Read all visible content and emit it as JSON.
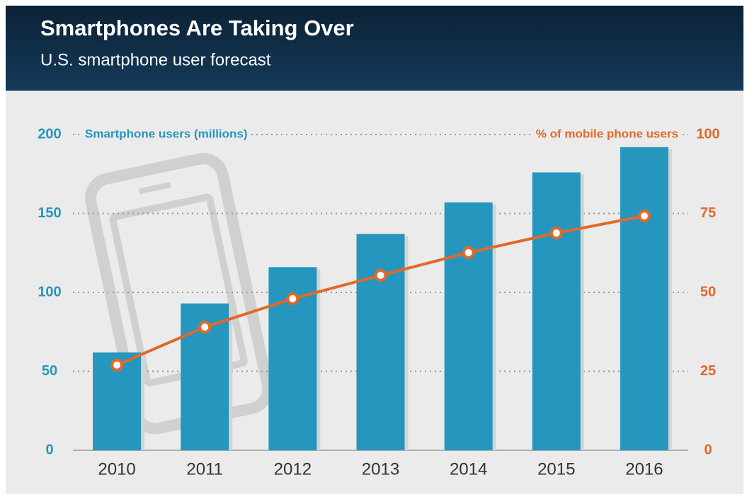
{
  "chart_data": {
    "type": "bar_line",
    "title": "Smartphones Are Taking Over",
    "subtitle": "U.S. smartphone user forecast",
    "categories": [
      "2010",
      "2011",
      "2012",
      "2013",
      "2014",
      "2015",
      "2016"
    ],
    "series": [
      {
        "name": "Smartphone users (millions)",
        "color": "#2596be",
        "values": [
          62,
          93,
          116,
          137,
          157,
          176,
          192
        ]
      },
      {
        "name": "% of mobile phone users",
        "color": "#e0692b",
        "axis": "y2",
        "values": [
          27,
          39,
          48,
          55.4,
          62.6,
          68.8,
          74.2
        ]
      }
    ],
    "ylim": [
      0,
      200
    ],
    "yticks": [
      0,
      50,
      100,
      150,
      200
    ],
    "y2lim": [
      0,
      100
    ],
    "y2ticks": [
      0,
      25,
      50,
      75,
      100
    ],
    "grid": true
  }
}
